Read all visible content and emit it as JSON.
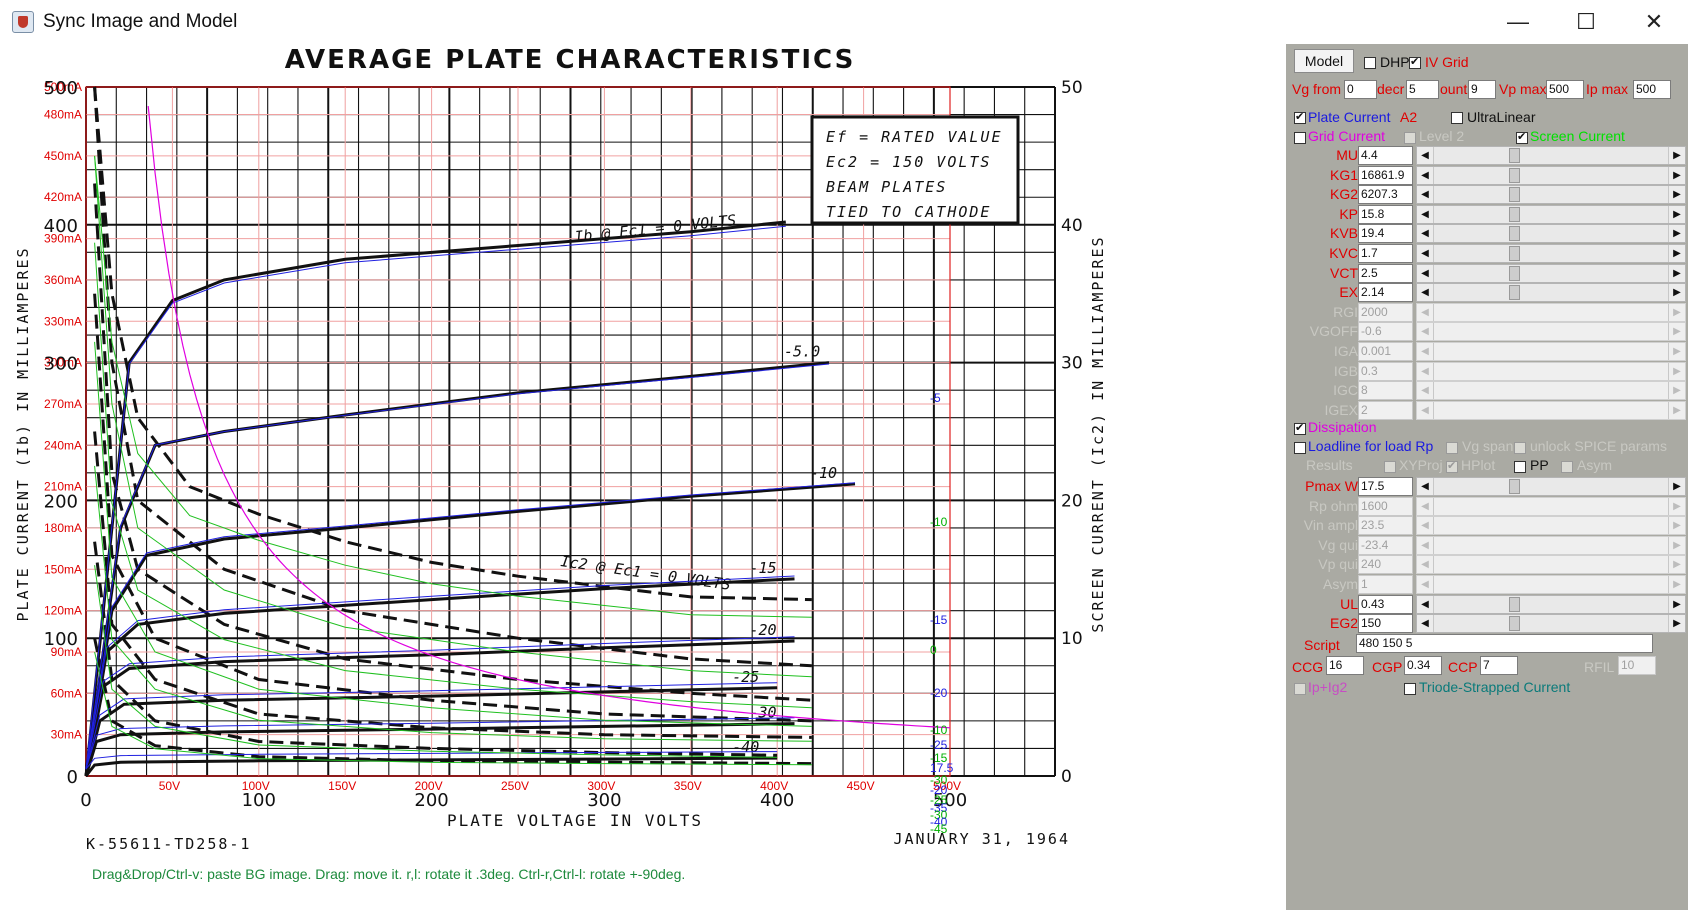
{
  "window": {
    "title": "Sync Image and Model",
    "minimize": "—",
    "maximize": "☐",
    "close": "✕"
  },
  "chart_data": {
    "type": "line",
    "title": "AVERAGE PLATE CHARACTERISTICS",
    "xlabel": "PLATE VOLTAGE IN VOLTS",
    "ylabel_left": "PLATE CURRENT (Ib) IN MILLIAMPERES",
    "ylabel_right": "SCREEN CURRENT (Ic2) IN MILLIAMPERES",
    "xlim": [
      0,
      500
    ],
    "ylim": [
      0,
      500
    ],
    "ylim_right": [
      0,
      50
    ],
    "x_ticks_paper": [
      "0",
      "100",
      "200",
      "300",
      "400",
      "500"
    ],
    "y_ticks_paper": [
      "0",
      "100",
      "200",
      "300",
      "400",
      "500"
    ],
    "y_ticks_right": [
      "0",
      "10",
      "20",
      "30",
      "40",
      "50"
    ],
    "x_ticks_overlay": [
      "50V",
      "100V",
      "150V",
      "200V",
      "250V",
      "300V",
      "350V",
      "400V",
      "450V",
      "500V"
    ],
    "y_ticks_overlay": [
      "30mA",
      "60mA",
      "90mA",
      "120mA",
      "150mA",
      "180mA",
      "210mA",
      "240mA",
      "270mA",
      "300mA",
      "330mA",
      "360mA",
      "390mA",
      "420mA",
      "450mA",
      "480mA",
      "500mA"
    ],
    "box_lines": [
      "Ef = RATED VALUE",
      "Ec2 = 150 VOLTS",
      "BEAM PLATES",
      "TIED TO CATHODE"
    ],
    "annotation_ib": "Ib @ Ec1 = 0 VOLTS",
    "annotation_ic2": "Ic2 @ Ec1 = 0 VOLTS",
    "footer_left": "K-55611-TD258-1",
    "footer_right": "JANUARY 31, 1964",
    "plate_curves": [
      {
        "label": "",
        "points": [
          [
            0,
            0
          ],
          [
            25,
            300
          ],
          [
            50,
            345
          ],
          [
            80,
            360
          ],
          [
            150,
            375
          ],
          [
            250,
            385
          ],
          [
            350,
            395
          ],
          [
            405,
            402
          ]
        ]
      },
      {
        "label": "-5.0",
        "points": [
          [
            0,
            0
          ],
          [
            20,
            180
          ],
          [
            40,
            240
          ],
          [
            80,
            250
          ],
          [
            150,
            262
          ],
          [
            250,
            278
          ],
          [
            350,
            290
          ],
          [
            430,
            300
          ]
        ]
      },
      {
        "label": "-10",
        "points": [
          [
            0,
            0
          ],
          [
            15,
            120
          ],
          [
            35,
            160
          ],
          [
            80,
            172
          ],
          [
            150,
            180
          ],
          [
            250,
            192
          ],
          [
            350,
            203
          ],
          [
            445,
            212
          ]
        ]
      },
      {
        "label": "-15",
        "points": [
          [
            0,
            0
          ],
          [
            12,
            90
          ],
          [
            30,
            110
          ],
          [
            80,
            118
          ],
          [
            200,
            128
          ],
          [
            300,
            136
          ],
          [
            410,
            143
          ]
        ]
      },
      {
        "label": "-20",
        "points": [
          [
            0,
            0
          ],
          [
            10,
            65
          ],
          [
            25,
            78
          ],
          [
            80,
            83
          ],
          [
            200,
            88
          ],
          [
            300,
            93
          ],
          [
            410,
            98
          ]
        ]
      },
      {
        "label": "-25",
        "points": [
          [
            0,
            0
          ],
          [
            8,
            40
          ],
          [
            22,
            52
          ],
          [
            80,
            55
          ],
          [
            200,
            58
          ],
          [
            300,
            61
          ],
          [
            400,
            64
          ]
        ]
      },
      {
        "label": "-30",
        "points": [
          [
            0,
            0
          ],
          [
            6,
            25
          ],
          [
            20,
            30
          ],
          [
            80,
            32
          ],
          [
            200,
            34
          ],
          [
            300,
            36
          ],
          [
            410,
            38
          ]
        ]
      },
      {
        "label": "-40",
        "points": [
          [
            0,
            0
          ],
          [
            5,
            8
          ],
          [
            20,
            10
          ],
          [
            100,
            11
          ],
          [
            250,
            12
          ],
          [
            400,
            13
          ]
        ]
      }
    ],
    "screen_curves": [
      {
        "label": "Ic2 @ Ec1 = 0 VOLTS",
        "points": [
          [
            5,
            500
          ],
          [
            15,
            350
          ],
          [
            30,
            260
          ],
          [
            60,
            210
          ],
          [
            100,
            190
          ],
          [
            150,
            170
          ],
          [
            200,
            155
          ],
          [
            250,
            145
          ],
          [
            350,
            130
          ],
          [
            420,
            128
          ]
        ]
      },
      {
        "label": "-5.0",
        "points": [
          [
            5,
            500
          ],
          [
            15,
            300
          ],
          [
            30,
            200
          ],
          [
            80,
            150
          ],
          [
            150,
            120
          ],
          [
            250,
            100
          ],
          [
            350,
            85
          ],
          [
            420,
            80
          ]
        ]
      },
      {
        "label": "-10",
        "points": [
          [
            5,
            430
          ],
          [
            15,
            220
          ],
          [
            30,
            150
          ],
          [
            80,
            110
          ],
          [
            150,
            85
          ],
          [
            250,
            70
          ],
          [
            350,
            60
          ],
          [
            420,
            55
          ]
        ]
      },
      {
        "label": "-15",
        "points": [
          [
            5,
            350
          ],
          [
            15,
            160
          ],
          [
            40,
            100
          ],
          [
            100,
            70
          ],
          [
            200,
            55
          ],
          [
            300,
            45
          ],
          [
            420,
            40
          ]
        ]
      },
      {
        "label": "-20",
        "points": [
          [
            5,
            250
          ],
          [
            15,
            110
          ],
          [
            40,
            70
          ],
          [
            100,
            45
          ],
          [
            200,
            35
          ],
          [
            300,
            30
          ],
          [
            420,
            28
          ]
        ]
      },
      {
        "label": "-25",
        "points": [
          [
            5,
            170
          ],
          [
            15,
            70
          ],
          [
            40,
            40
          ],
          [
            100,
            25
          ],
          [
            200,
            20
          ],
          [
            300,
            17
          ],
          [
            400,
            15
          ]
        ]
      },
      {
        "label": "30",
        "points": [
          [
            5,
            100
          ],
          [
            15,
            40
          ],
          [
            40,
            22
          ],
          [
            100,
            14
          ],
          [
            200,
            11
          ],
          [
            300,
            10
          ],
          [
            420,
            9
          ]
        ]
      }
    ],
    "model_curves_labels": [
      "-5",
      "-10",
      "-15",
      "0",
      "-20",
      "-10",
      "-25",
      "-15",
      "17.5",
      "-30",
      "-20",
      "-25",
      "-35",
      "-30",
      "-40",
      "-45"
    ],
    "dissipation_pmax_w": 17.5
  },
  "panel": {
    "model_btn": "Model",
    "dhp": "DHP",
    "iv_grid": "IV Grid",
    "vg_from_lbl": "Vg from",
    "vg_from_val": "0",
    "decr_lbl": "decr",
    "decr_val": "5",
    "count_lbl": "ount",
    "count_val": "9",
    "vpmax_lbl": "Vp max",
    "vpmax_val": "500",
    "ipmax_lbl": "Ip max",
    "ipmax_val": "500",
    "plate_current": "Plate Current",
    "a2": "A2",
    "ultralinear": "UltraLinear",
    "grid_current": "Grid Current",
    "level2": "Level 2",
    "screen_current": "Screen Current",
    "params": [
      {
        "name": "MU",
        "value": "4.4",
        "enabled": true
      },
      {
        "name": "KG1",
        "value": "16861.9",
        "enabled": true
      },
      {
        "name": "KG2",
        "value": "6207.3",
        "enabled": true
      },
      {
        "name": "KP",
        "value": "15.8",
        "enabled": true
      },
      {
        "name": "KVB",
        "value": "19.4",
        "enabled": true
      },
      {
        "name": "KVC",
        "value": "1.7",
        "enabled": true
      },
      {
        "name": "VCT",
        "value": "2.5",
        "enabled": true
      },
      {
        "name": "EX",
        "value": "2.14",
        "enabled": true
      },
      {
        "name": "RGI",
        "value": "2000",
        "enabled": false
      },
      {
        "name": "VGOFF",
        "value": "-0.6",
        "enabled": false
      },
      {
        "name": "IGA",
        "value": "0.001",
        "enabled": false
      },
      {
        "name": "IGB",
        "value": "0.3",
        "enabled": false
      },
      {
        "name": "IGC",
        "value": "8",
        "enabled": false
      },
      {
        "name": "IGEX",
        "value": "2",
        "enabled": false
      }
    ],
    "dissipation": "Dissipation",
    "loadline": "Loadline for load Rp",
    "vg_span": "Vg span",
    "unlock_spice": "unlock SPICE params",
    "results": "Results",
    "xyproj": "XYProj",
    "hplot": "HPlot",
    "pp": "PP",
    "asym_chk": "Asym",
    "load_params": [
      {
        "name": "Pmax W",
        "value": "17.5",
        "enabled": true
      },
      {
        "name": "Rp ohm",
        "value": "1600",
        "enabled": false
      },
      {
        "name": "Vin ampl",
        "value": "23.5",
        "enabled": false
      },
      {
        "name": "Vg qui",
        "value": "-23.4",
        "enabled": false
      },
      {
        "name": "Vp qui",
        "value": "240",
        "enabled": false
      },
      {
        "name": "Asym",
        "value": "1",
        "enabled": false
      },
      {
        "name": "UL",
        "value": "0.43",
        "enabled": true
      },
      {
        "name": "EG2",
        "value": "150",
        "enabled": true
      }
    ],
    "script_lbl": "Script",
    "script_val": "480 150 5",
    "ccg_lbl": "CCG",
    "ccg_val": "16",
    "cgp_lbl": "CGP",
    "cgp_val": "0.34",
    "ccp_lbl": "CCP",
    "ccp_val": "7",
    "rfil_lbl": "RFIL",
    "rfil_val": "10",
    "ip_ig2": "Ip+Ig2",
    "triode_strapped": "Triode-Strapped Current"
  },
  "hint": "Drag&Drop/Ctrl-v: paste BG image. Drag: move it. r,l: rotate it .3deg. Ctrl-r,Ctrl-l: rotate +-90deg."
}
